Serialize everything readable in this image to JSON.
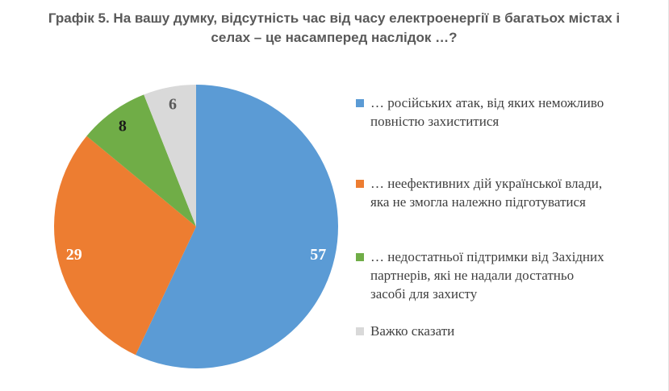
{
  "chart_data": {
    "type": "pie",
    "title": "Графік 5. На вашу думку, відсутність час від часу електроенергії в багатьох містах і селах – це насамперед наслідок …?",
    "title_lines": [
      "Графік 5. На вашу думку, відсутність час від часу електроенергії в багатьох містах і",
      "селах – це насамперед наслідок …?"
    ],
    "total": 100,
    "data_labels": "value",
    "legend_position": "right",
    "start_angle_deg": 0,
    "direction": "clockwise",
    "slices": [
      {
        "label": "… російських атак, від яких неможливо повністю захиститися",
        "lines": [
          "… російських атак, від яких неможливо",
          "повністю захиститися"
        ],
        "value": 57,
        "color": "#5B9BD5",
        "label_color": "#FFFFFF"
      },
      {
        "label": "… неефективних дій української влади, яка не змогла належно підготуватися",
        "lines": [
          "… неефективних дій української влади,",
          "яка не змогла належно підготуватися"
        ],
        "value": 29,
        "color": "#ED7D31",
        "label_color": "#FFFFFF"
      },
      {
        "label": "… недостатньої підтримки від Західних партнерів, які не надали достатньо засобі для захисту",
        "lines": [
          "… недостатньої підтримки від Західних",
          "партнерів, які не надали достатньо",
          "засобі для захисту"
        ],
        "value": 8,
        "color": "#70AD47",
        "label_color": "#1A1A1A"
      },
      {
        "label": "Важко сказати",
        "lines": [
          "Важко сказати"
        ],
        "value": 6,
        "color": "#D9D9D9",
        "label_color": "#595959"
      }
    ]
  }
}
